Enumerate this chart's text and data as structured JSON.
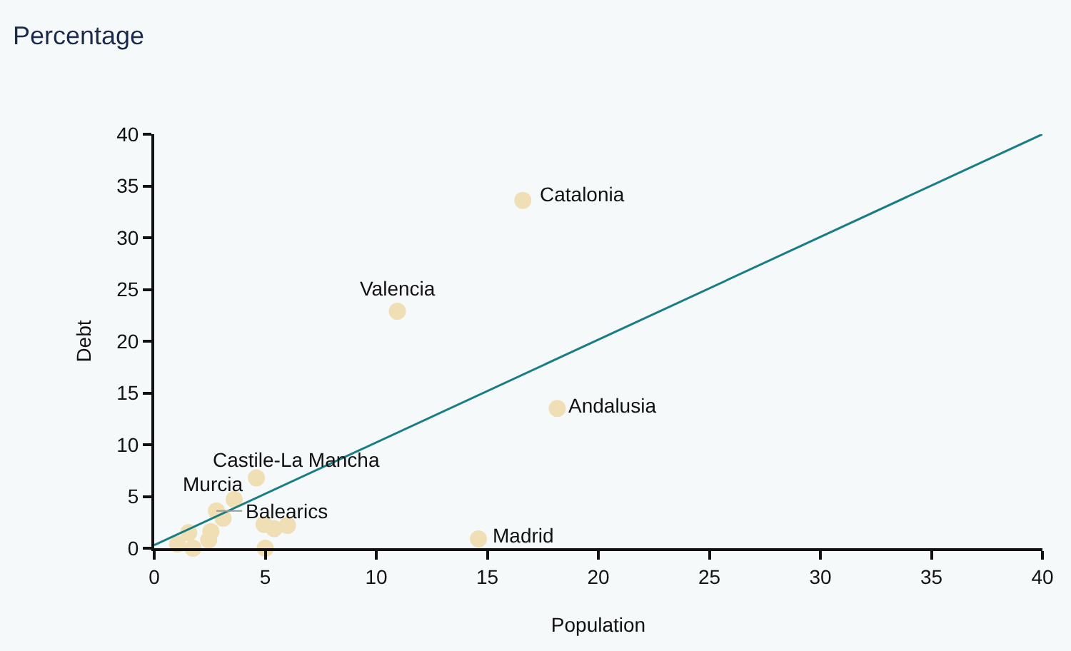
{
  "chart_data": {
    "type": "scatter",
    "title": "Percentage",
    "xlabel": "Population",
    "ylabel": "Debt",
    "xlim": [
      0,
      40
    ],
    "ylim": [
      0,
      40
    ],
    "xticks": [
      0,
      5,
      10,
      15,
      20,
      25,
      30,
      35,
      40
    ],
    "yticks": [
      0,
      5,
      10,
      15,
      20,
      25,
      30,
      35,
      40
    ],
    "grid": false,
    "marker": "circle",
    "series": [
      {
        "color": "#f0dfb5",
        "x": [
          16.6,
          10.95,
          18.15,
          14.6,
          4.6,
          3.6,
          2.8,
          3.1,
          1.55,
          2.55,
          2.45,
          1.05,
          1.75,
          4.95,
          5.4,
          6.0,
          5.0
        ],
        "values": [
          33.6,
          22.9,
          13.5,
          0.9,
          6.8,
          4.7,
          3.6,
          2.9,
          1.5,
          1.6,
          0.8,
          0.4,
          0.0,
          2.3,
          1.9,
          2.2,
          0.0
        ]
      },
      {
        "type": "line",
        "marker": "none",
        "color": "#1a7d85",
        "x": [
          0,
          40
        ],
        "values": [
          0.3,
          40
        ]
      }
    ],
    "annotations": [
      {
        "text": "Catalonia",
        "x": 16.6,
        "y": 33.6
      },
      {
        "text": "Valencia",
        "x": 10.95,
        "y": 22.9
      },
      {
        "text": "Andalusia",
        "x": 18.15,
        "y": 13.5
      },
      {
        "text": "Madrid",
        "x": 14.6,
        "y": 0.9
      },
      {
        "text": "Castile-La Mancha",
        "x": 4.6,
        "y": 6.8
      },
      {
        "text": "Murcia",
        "x": 3.6,
        "y": 4.7
      },
      {
        "text": "Balearics",
        "x": 2.8,
        "y": 3.6
      }
    ]
  }
}
